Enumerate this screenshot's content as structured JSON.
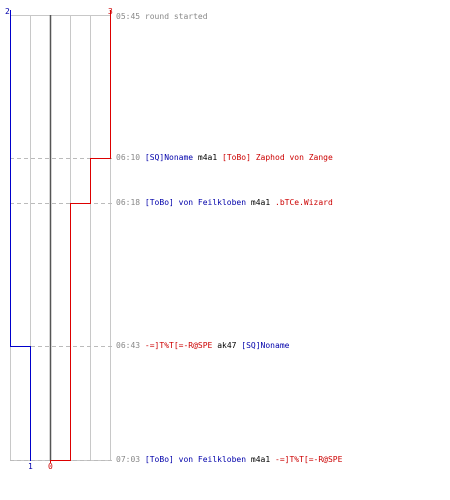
{
  "header": {
    "blue_top_score": "2",
    "red_top_score": "3",
    "blue_bottom_score": "1",
    "red_bottom_score": "0"
  },
  "colors": {
    "team_blue": "#0000aa",
    "team_red": "#cc0000",
    "grid": "#c8c8c8",
    "dashed_marker": "#bbbbbb",
    "time": "#888888"
  },
  "events": [
    {
      "time": "05:45",
      "text": "round started"
    },
    {
      "time": "06:10",
      "killer": "[SQ]Noname",
      "killer_team": "blue",
      "weapon": "m4a1",
      "victim": "[ToBo] Zaphod von Zange",
      "victim_team": "red"
    },
    {
      "time": "06:18",
      "killer": "[ToBo] von Feilkloben",
      "killer_team": "blue",
      "weapon": "m4a1",
      "victim": ".bTCe.Wizard",
      "victim_team": "red"
    },
    {
      "time": "06:43",
      "killer": "-=]T%T[=-R@SPE",
      "killer_team": "red",
      "weapon": "ak47",
      "victim": "[SQ]Noname",
      "victim_team": "blue"
    },
    {
      "time": "07:03",
      "killer": "[ToBo] von Feilkloben",
      "killer_team": "blue",
      "weapon": "m4a1",
      "victim": "-=]T%T[=-R@SPE",
      "victim_team": "red"
    }
  ]
}
